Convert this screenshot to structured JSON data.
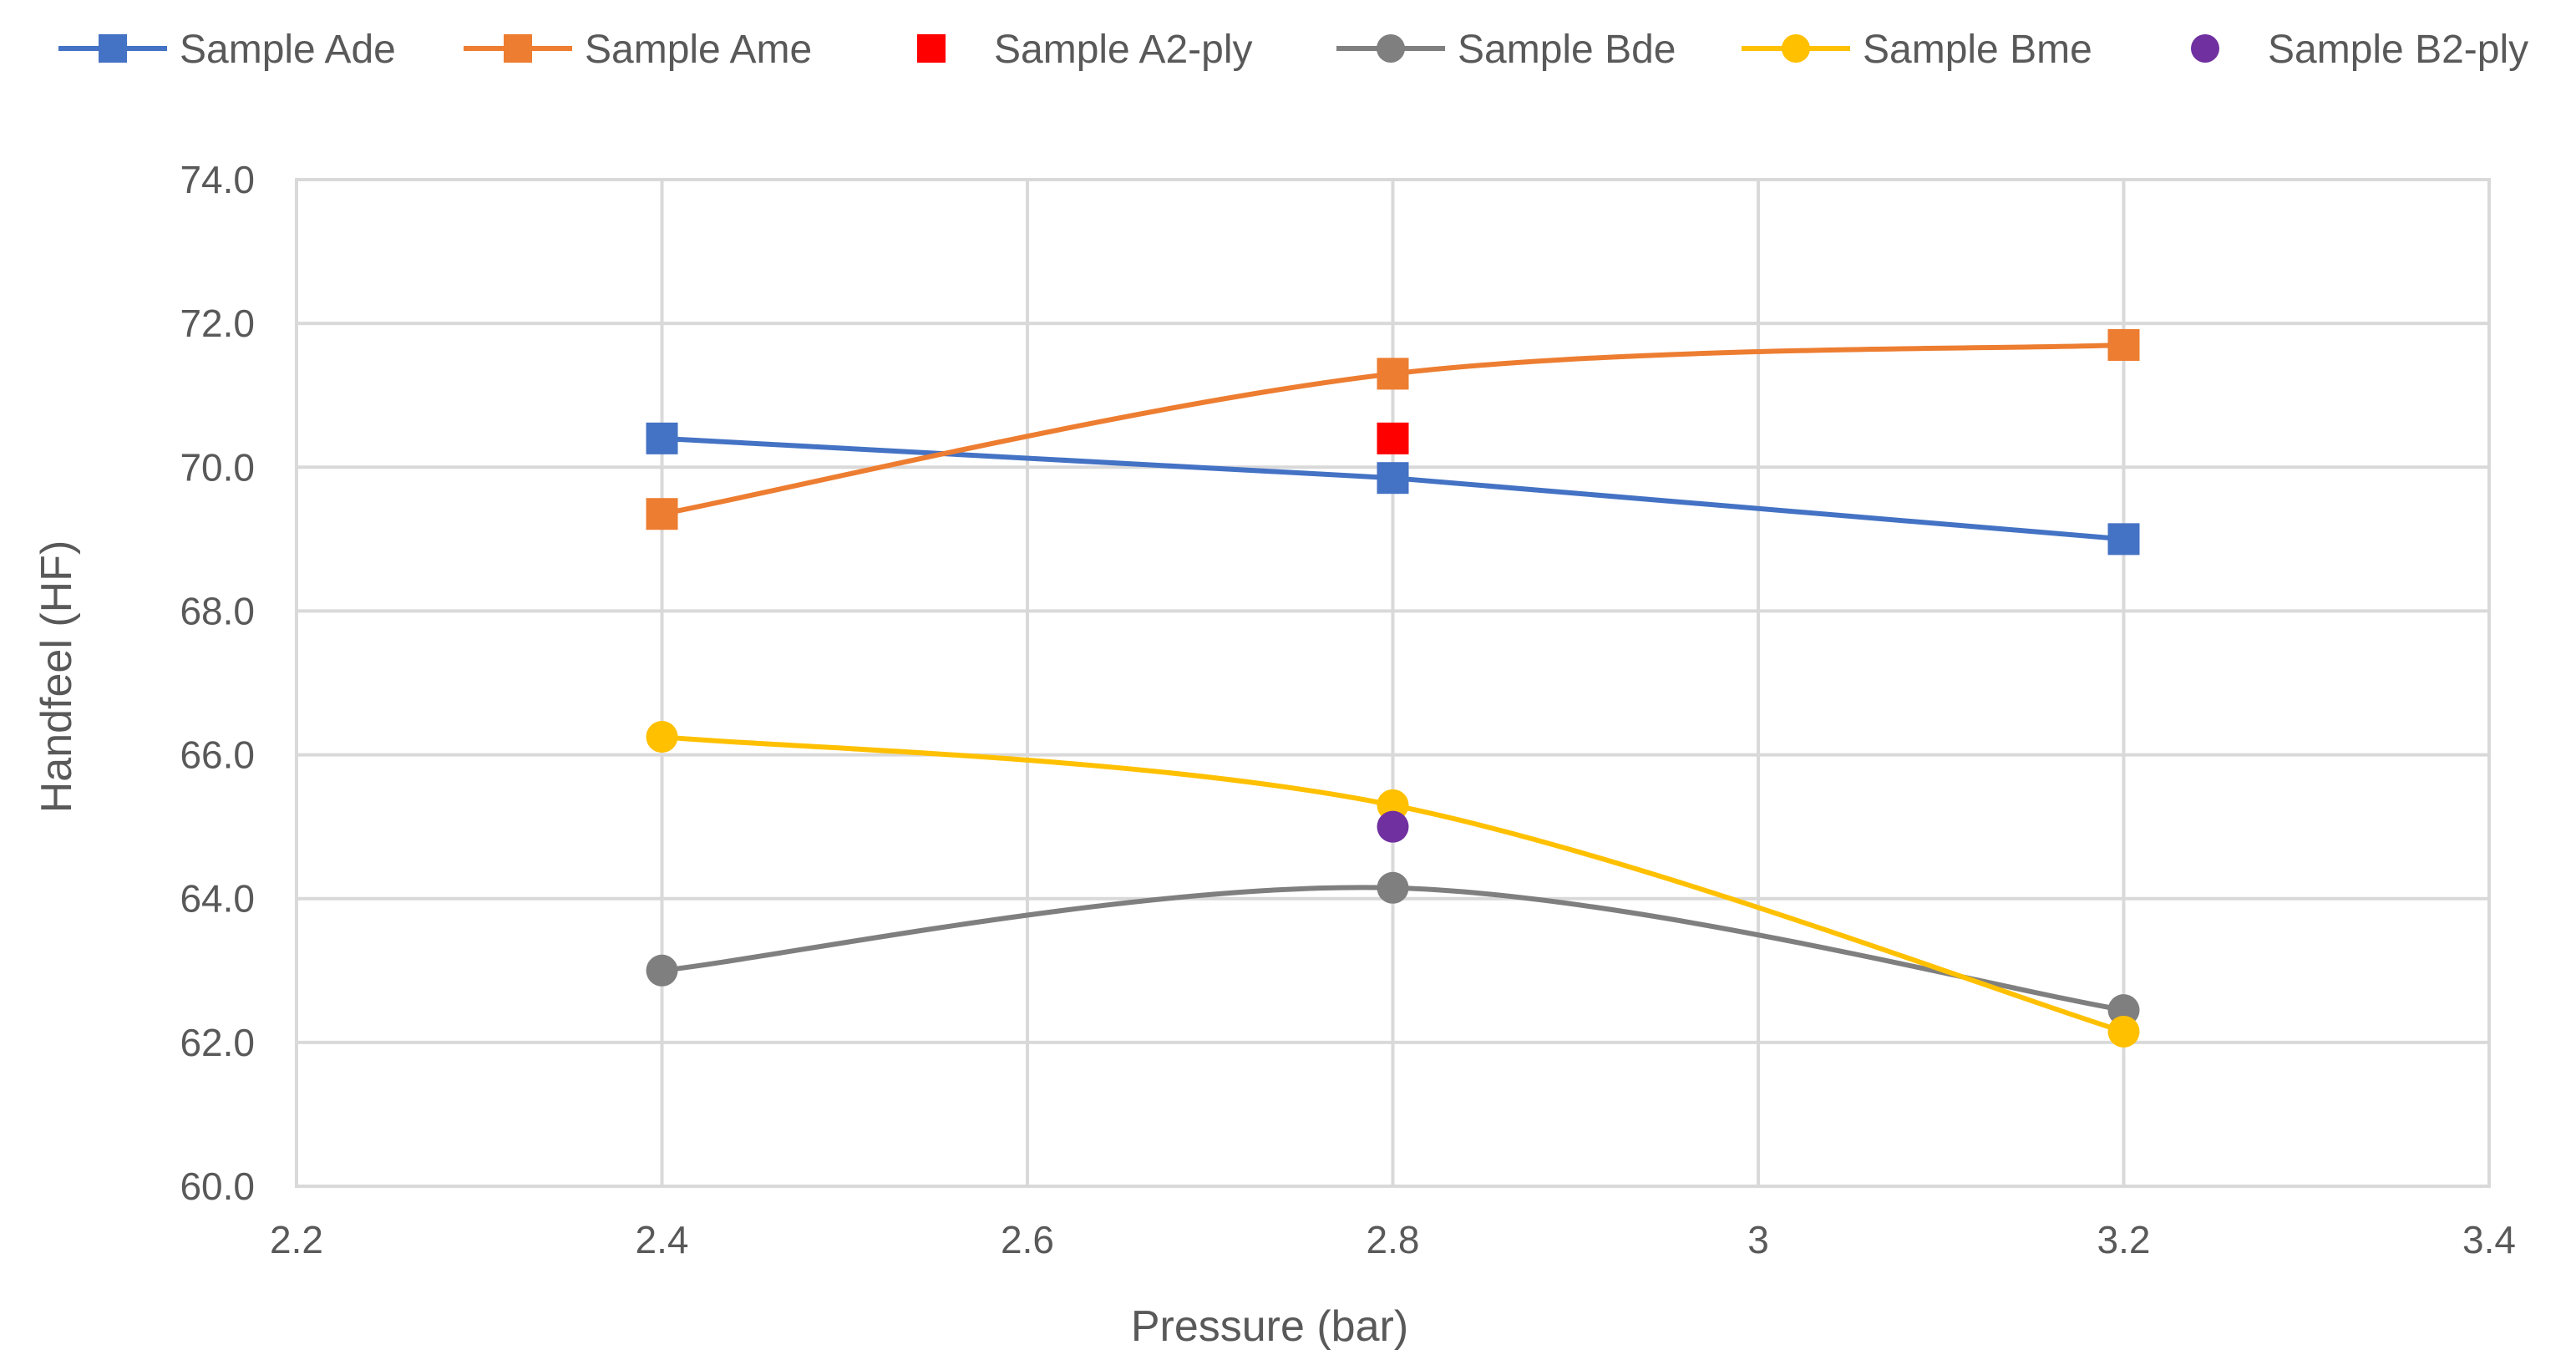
{
  "chart_data": {
    "type": "line",
    "title": "",
    "xlabel": "Pressure (bar)",
    "ylabel": "Handfeel (HF)",
    "xlim": [
      2.2,
      3.4
    ],
    "ylim": [
      60.0,
      74.0
    ],
    "x_ticks": [
      {
        "value": 2.2,
        "label": "2.2"
      },
      {
        "value": 2.4,
        "label": "2.4"
      },
      {
        "value": 2.6,
        "label": "2.6"
      },
      {
        "value": 2.8,
        "label": "2.8"
      },
      {
        "value": 3.0,
        "label": "3"
      },
      {
        "value": 3.2,
        "label": "3.2"
      },
      {
        "value": 3.4,
        "label": "3.4"
      }
    ],
    "y_ticks": [
      {
        "value": 60,
        "label": "60.0"
      },
      {
        "value": 62,
        "label": "62.0"
      },
      {
        "value": 64,
        "label": "64.0"
      },
      {
        "value": 66,
        "label": "66.0"
      },
      {
        "value": 68,
        "label": "68.0"
      },
      {
        "value": 70,
        "label": "70.0"
      },
      {
        "value": 72,
        "label": "72.0"
      },
      {
        "value": 74,
        "label": "74.0"
      }
    ],
    "grid": true,
    "legend_position": "top",
    "series": [
      {
        "name": "Sample Ade",
        "color": "#4472C4",
        "marker": "square",
        "line": "straight",
        "points": [
          {
            "x": 2.4,
            "y": 70.4
          },
          {
            "x": 2.8,
            "y": 69.85
          },
          {
            "x": 3.2,
            "y": 69.0
          }
        ]
      },
      {
        "name": "Sample Ame",
        "color": "#ED7D31",
        "marker": "square",
        "line": "smooth",
        "points": [
          {
            "x": 2.4,
            "y": 69.35
          },
          {
            "x": 2.8,
            "y": 71.3
          },
          {
            "x": 3.2,
            "y": 71.7
          }
        ]
      },
      {
        "name": "Sample A2-ply",
        "color": "#FF0000",
        "marker": "square",
        "line": "none",
        "points": [
          {
            "x": 2.8,
            "y": 70.4
          }
        ]
      },
      {
        "name": "Sample Bde",
        "color": "#7F7F7F",
        "marker": "circle",
        "line": "smooth",
        "points": [
          {
            "x": 2.4,
            "y": 63.0
          },
          {
            "x": 2.8,
            "y": 64.15
          },
          {
            "x": 3.2,
            "y": 62.45
          }
        ]
      },
      {
        "name": "Sample Bme",
        "color": "#FFC000",
        "marker": "circle",
        "line": "smooth",
        "points": [
          {
            "x": 2.4,
            "y": 66.25
          },
          {
            "x": 2.8,
            "y": 65.3
          },
          {
            "x": 3.2,
            "y": 62.15
          }
        ]
      },
      {
        "name": "Sample B2-ply",
        "color": "#7030A0",
        "marker": "circle",
        "line": "none",
        "points": [
          {
            "x": 2.8,
            "y": 65.0
          }
        ]
      }
    ]
  }
}
